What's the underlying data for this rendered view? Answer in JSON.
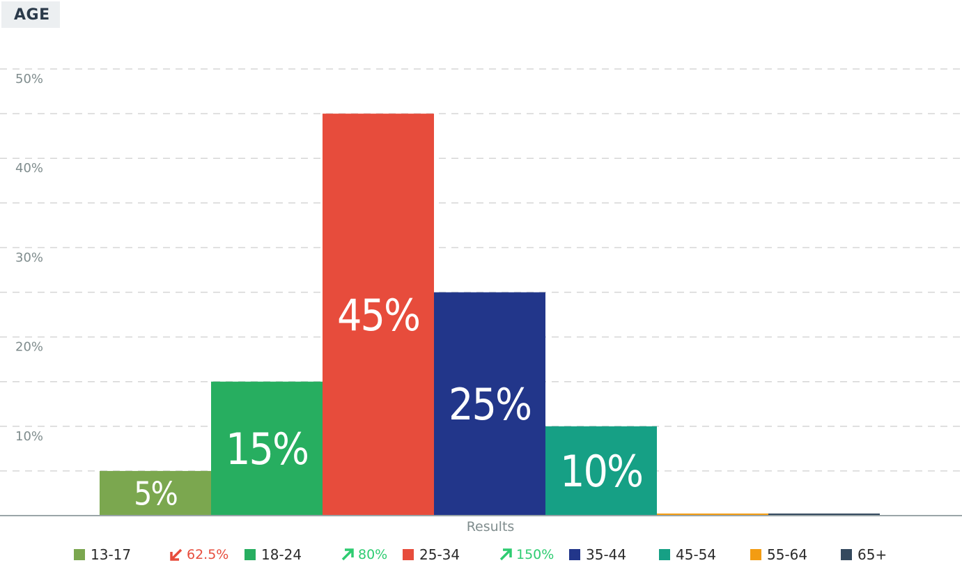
{
  "header": {
    "title": "AGE"
  },
  "chart_data": {
    "type": "bar",
    "categories": [
      "13-17",
      "18-24",
      "25-34",
      "35-44",
      "45-54",
      "55-64",
      "65+"
    ],
    "values": [
      5,
      15,
      45,
      25,
      10,
      0,
      0
    ],
    "value_labels": [
      "5%",
      "15%",
      "45%",
      "25%",
      "10%",
      "",
      ""
    ],
    "colors": [
      "#7ba74f",
      "#27ae60",
      "#e74c3c",
      "#22368a",
      "#16a085",
      "#f39c12",
      "#34495e"
    ],
    "xlabel": "Results",
    "ylim": [
      0,
      50
    ],
    "yticks": [
      10,
      20,
      30,
      40,
      50
    ],
    "ytick_labels": [
      "10%",
      "20%",
      "30%",
      "40%",
      "50%"
    ],
    "grid": true,
    "legend_position": "bottom"
  },
  "legend": {
    "items": [
      {
        "label": "13-17",
        "color": "#7ba74f"
      },
      {
        "label": "18-24",
        "color": "#27ae60"
      },
      {
        "label": "25-34",
        "color": "#e74c3c"
      },
      {
        "label": "35-44",
        "color": "#22368a"
      },
      {
        "label": "45-54",
        "color": "#16a085"
      },
      {
        "label": "55-64",
        "color": "#f39c12"
      },
      {
        "label": "65+",
        "color": "#34495e"
      }
    ],
    "changes": [
      {
        "text": "62.5%",
        "direction": "down",
        "color": "#e74c3c",
        "icon": "arrow-down-left-icon"
      },
      {
        "text": "80%",
        "direction": "up",
        "color": "#2ecc71",
        "icon": "arrow-up-right-icon"
      },
      {
        "text": "150%",
        "direction": "up",
        "color": "#2ecc71",
        "icon": "arrow-up-right-icon"
      }
    ]
  }
}
